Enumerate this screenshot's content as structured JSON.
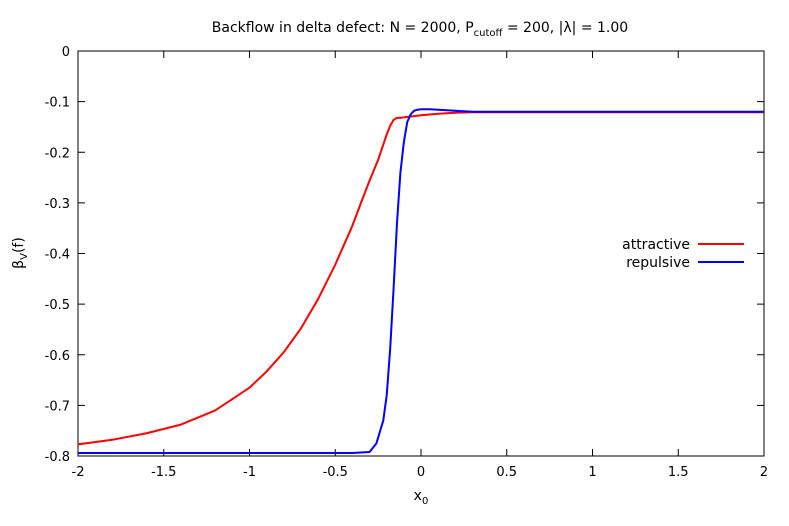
{
  "chart_data": {
    "type": "line",
    "title_parts": {
      "prefix": "Backflow in delta defect: N = 2000, P",
      "sub": "cutoff",
      "suffix": " = 200, |λ| = 1.00"
    },
    "xlabel_parts": {
      "base": "x",
      "sub": "0"
    },
    "ylabel_parts": {
      "base": "β",
      "sub": "V",
      "suffix": "(f)"
    },
    "xlim": [
      -2,
      2
    ],
    "ylim": [
      -0.8,
      0
    ],
    "xticks": [
      "-2",
      "-1.5",
      "-1",
      "-0.5",
      "0",
      "0.5",
      "1",
      "1.5",
      "2"
    ],
    "yticks": [
      "0",
      "-0.1",
      "-0.2",
      "-0.3",
      "-0.4",
      "-0.5",
      "-0.6",
      "-0.7",
      "-0.8"
    ],
    "grid": false,
    "legend_position": "right",
    "series": [
      {
        "name": "attractive",
        "color": "#ff0000",
        "x": [
          -2.0,
          -1.8,
          -1.6,
          -1.4,
          -1.2,
          -1.0,
          -0.9,
          -0.8,
          -0.7,
          -0.6,
          -0.5,
          -0.4,
          -0.35,
          -0.3,
          -0.25,
          -0.2,
          -0.18,
          -0.16,
          -0.14,
          -0.12,
          -0.1,
          0.0,
          0.1,
          0.2,
          0.3,
          0.5,
          1.0,
          1.5,
          2.0
        ],
        "y": [
          -0.777,
          -0.768,
          -0.755,
          -0.738,
          -0.71,
          -0.665,
          -0.633,
          -0.595,
          -0.548,
          -0.49,
          -0.422,
          -0.345,
          -0.3,
          -0.256,
          -0.215,
          -0.165,
          -0.148,
          -0.136,
          -0.132,
          -0.132,
          -0.131,
          -0.127,
          -0.124,
          -0.122,
          -0.121,
          -0.121,
          -0.121,
          -0.121,
          -0.121
        ]
      },
      {
        "name": "repulsive",
        "color": "#0000ff",
        "x": [
          -2.0,
          -1.0,
          -0.4,
          -0.3,
          -0.26,
          -0.22,
          -0.2,
          -0.18,
          -0.16,
          -0.14,
          -0.12,
          -0.1,
          -0.08,
          -0.06,
          -0.04,
          -0.02,
          0.0,
          0.05,
          0.1,
          0.2,
          0.3,
          0.5,
          1.0,
          2.0
        ],
        "y": [
          -0.794,
          -0.794,
          -0.794,
          -0.792,
          -0.775,
          -0.73,
          -0.68,
          -0.59,
          -0.47,
          -0.34,
          -0.24,
          -0.18,
          -0.14,
          -0.125,
          -0.118,
          -0.116,
          -0.115,
          -0.115,
          -0.116,
          -0.118,
          -0.12,
          -0.12,
          -0.12,
          -0.12
        ]
      }
    ]
  }
}
